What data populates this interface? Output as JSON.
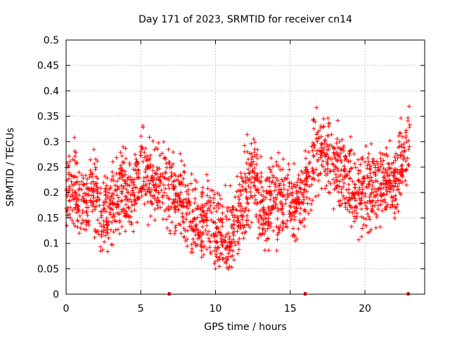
{
  "chart_data": {
    "type": "scatter",
    "title": "Day 171 of 2023, SRMTID for receiver cn14",
    "xlabel": "GPS time / hours",
    "ylabel": "SRMTID / TECUs",
    "xlim": [
      0,
      24
    ],
    "ylim": [
      0,
      0.5
    ],
    "xticks": [
      0,
      5,
      10,
      15,
      20
    ],
    "xtick_labels": [
      "0",
      "5",
      "10",
      "15",
      "20"
    ],
    "yticks": [
      0,
      0.05,
      0.1,
      0.15,
      0.2,
      0.25,
      0.3,
      0.35,
      0.4,
      0.45,
      0.5
    ],
    "ytick_labels": [
      "0",
      "0.05",
      "0.1",
      "0.15",
      "0.2",
      "0.25",
      "0.3",
      "0.35",
      "0.4",
      "0.45",
      "0.5"
    ],
    "grid": true,
    "marker": "plus",
    "color": "#ff0000",
    "data_gap_markers": [
      {
        "x": 6.9,
        "y": 0
      },
      {
        "x": 16.0,
        "y": 0
      },
      {
        "x": 22.9,
        "y": 0
      }
    ],
    "trend": [
      {
        "x": 0.0,
        "y": 0.2
      },
      {
        "x": 0.5,
        "y": 0.22
      },
      {
        "x": 1.0,
        "y": 0.17
      },
      {
        "x": 1.5,
        "y": 0.19
      },
      {
        "x": 2.0,
        "y": 0.2
      },
      {
        "x": 2.5,
        "y": 0.15
      },
      {
        "x": 3.0,
        "y": 0.18
      },
      {
        "x": 3.5,
        "y": 0.19
      },
      {
        "x": 4.0,
        "y": 0.21
      },
      {
        "x": 4.5,
        "y": 0.19
      },
      {
        "x": 5.0,
        "y": 0.25
      },
      {
        "x": 5.5,
        "y": 0.23
      },
      {
        "x": 6.0,
        "y": 0.2
      },
      {
        "x": 6.5,
        "y": 0.23
      },
      {
        "x": 7.0,
        "y": 0.2
      },
      {
        "x": 7.5,
        "y": 0.19
      },
      {
        "x": 8.0,
        "y": 0.16
      },
      {
        "x": 8.5,
        "y": 0.15
      },
      {
        "x": 9.0,
        "y": 0.14
      },
      {
        "x": 9.5,
        "y": 0.14
      },
      {
        "x": 10.0,
        "y": 0.12
      },
      {
        "x": 10.5,
        "y": 0.11
      },
      {
        "x": 11.0,
        "y": 0.12
      },
      {
        "x": 11.5,
        "y": 0.14
      },
      {
        "x": 12.0,
        "y": 0.2
      },
      {
        "x": 12.5,
        "y": 0.25
      },
      {
        "x": 13.0,
        "y": 0.18
      },
      {
        "x": 13.5,
        "y": 0.17
      },
      {
        "x": 14.0,
        "y": 0.19
      },
      {
        "x": 14.5,
        "y": 0.18
      },
      {
        "x": 15.0,
        "y": 0.17
      },
      {
        "x": 15.5,
        "y": 0.19
      },
      {
        "x": 16.0,
        "y": 0.2
      },
      {
        "x": 16.5,
        "y": 0.27
      },
      {
        "x": 17.0,
        "y": 0.28
      },
      {
        "x": 17.5,
        "y": 0.27
      },
      {
        "x": 18.0,
        "y": 0.26
      },
      {
        "x": 18.5,
        "y": 0.24
      },
      {
        "x": 19.0,
        "y": 0.22
      },
      {
        "x": 19.5,
        "y": 0.21
      },
      {
        "x": 20.0,
        "y": 0.2
      },
      {
        "x": 20.5,
        "y": 0.21
      },
      {
        "x": 21.0,
        "y": 0.22
      },
      {
        "x": 21.5,
        "y": 0.23
      },
      {
        "x": 22.0,
        "y": 0.21
      },
      {
        "x": 22.5,
        "y": 0.26
      },
      {
        "x": 23.0,
        "y": 0.3
      }
    ],
    "spread": 0.06,
    "points_per_hour": 90,
    "x_data_end": 23.0
  }
}
